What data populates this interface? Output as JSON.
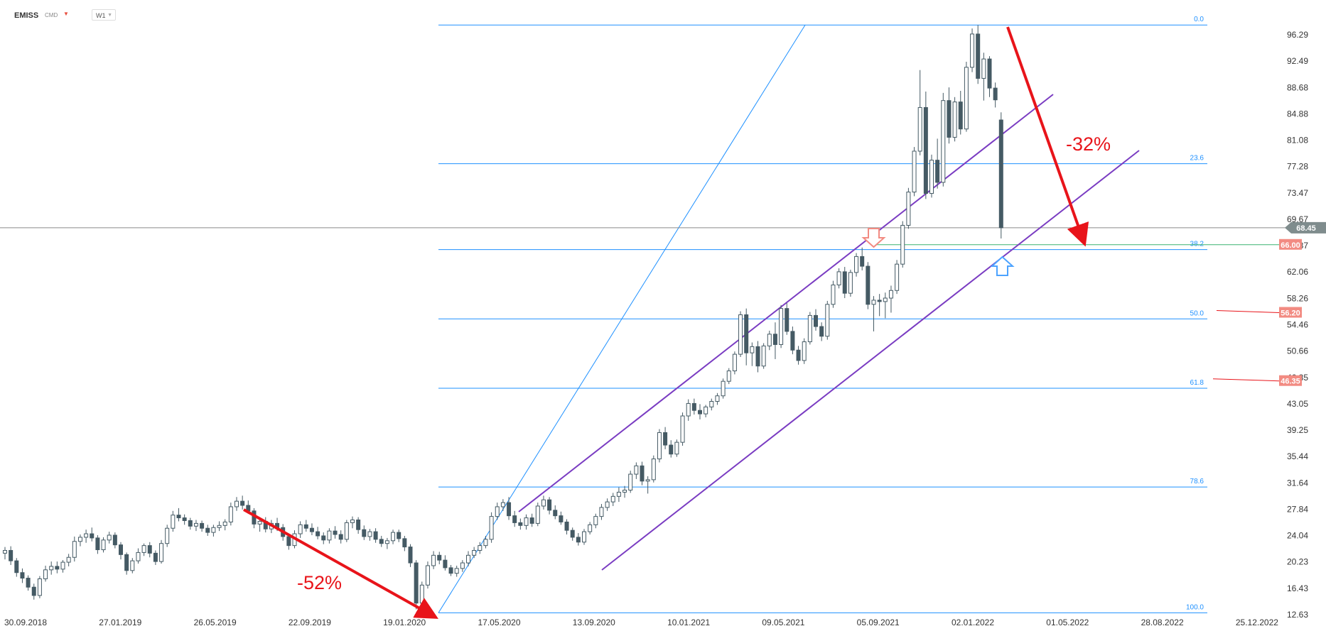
{
  "header": {
    "symbol": "EMISS",
    "type": "CMD",
    "timeframe": "W1"
  },
  "colors": {
    "candle_up_fill": "#ffffff",
    "candle_down_fill": "#455a64",
    "candle_stroke": "#455a64",
    "fib_line": "#1e90ff",
    "channel": "#7a3cc2",
    "arrow": "#e8141a",
    "current_price_bg": "#7f8c8d",
    "level_badge_bg": "#f28b82",
    "marker_down": "#f28b82",
    "marker_up": "#4da3ff"
  },
  "chart_data": {
    "type": "candlestick",
    "title": "",
    "x_ticks": [
      "30.09.2018",
      "27.01.2019",
      "26.05.2019",
      "22.09.2019",
      "19.01.2020",
      "17.05.2020",
      "13.09.2020",
      "10.01.2021",
      "09.05.2021",
      "05.09.2021",
      "02.01.2022",
      "01.05.2022",
      "28.08.2022",
      "25.12.2022"
    ],
    "y_ticks": [
      "96.29",
      "92.49",
      "88.68",
      "84.88",
      "81.08",
      "77.28",
      "73.47",
      "69.67",
      "65.87",
      "62.06",
      "58.26",
      "54.46",
      "50.66",
      "46.85",
      "43.05",
      "39.25",
      "35.44",
      "31.64",
      "27.84",
      "24.04",
      "20.23",
      "16.43",
      "12.63"
    ],
    "ylim": [
      12.63,
      98.5
    ],
    "current_price": {
      "label": "68.45",
      "value": 68.45
    },
    "fibonacci": {
      "high": 97.7,
      "low": 12.9,
      "levels": [
        {
          "label": "0.0",
          "ratio": 0.0
        },
        {
          "label": "23.6",
          "ratio": 0.236
        },
        {
          "label": "38.2",
          "ratio": 0.382
        },
        {
          "label": "50.0",
          "ratio": 0.5
        },
        {
          "label": "61.8",
          "ratio": 0.618
        },
        {
          "label": "78.6",
          "ratio": 0.786
        },
        {
          "label": "100.0",
          "ratio": 1.0
        }
      ]
    },
    "price_levels": [
      {
        "label": "66.00",
        "value": 66.0
      },
      {
        "label": "56.20",
        "value": 56.2
      },
      {
        "label": "46.35",
        "value": 46.35
      }
    ],
    "annotations": [
      {
        "text": "-52%"
      },
      {
        "text": "-32%"
      }
    ],
    "candles": [
      [
        21.5,
        22.4,
        20.6,
        21.9
      ],
      [
        21.9,
        22.5,
        19.8,
        20.4
      ],
      [
        20.4,
        20.8,
        18.1,
        18.7
      ],
      [
        18.7,
        19.3,
        17.2,
        17.9
      ],
      [
        17.9,
        18.3,
        16.1,
        16.6
      ],
      [
        16.6,
        17.1,
        14.8,
        15.4
      ],
      [
        15.4,
        18.2,
        15.0,
        17.8
      ],
      [
        17.8,
        19.7,
        17.4,
        19.1
      ],
      [
        19.1,
        20.3,
        18.4,
        19.6
      ],
      [
        19.6,
        20.3,
        18.6,
        19.2
      ],
      [
        19.2,
        20.5,
        18.7,
        20.2
      ],
      [
        20.2,
        21.4,
        19.6,
        20.9
      ],
      [
        20.9,
        23.9,
        20.3,
        23.2
      ],
      [
        23.2,
        24.2,
        22.5,
        23.8
      ],
      [
        23.8,
        24.9,
        23.0,
        24.3
      ],
      [
        24.3,
        25.2,
        23.2,
        23.7
      ],
      [
        23.7,
        24.1,
        21.4,
        22.0
      ],
      [
        22.0,
        23.8,
        21.6,
        23.4
      ],
      [
        23.4,
        24.6,
        22.9,
        24.1
      ],
      [
        24.1,
        24.5,
        22.2,
        22.7
      ],
      [
        22.7,
        23.1,
        20.6,
        21.3
      ],
      [
        21.3,
        21.6,
        18.4,
        19.0
      ],
      [
        19.0,
        20.8,
        18.6,
        20.4
      ],
      [
        20.4,
        22.2,
        20.0,
        21.6
      ],
      [
        21.6,
        22.9,
        21.1,
        22.6
      ],
      [
        22.6,
        23.1,
        20.9,
        21.5
      ],
      [
        21.5,
        21.9,
        19.8,
        20.3
      ],
      [
        20.3,
        23.4,
        20.0,
        22.9
      ],
      [
        22.9,
        25.6,
        22.4,
        25.1
      ],
      [
        25.1,
        27.6,
        24.6,
        27.0
      ],
      [
        27.0,
        28.0,
        26.1,
        26.6
      ],
      [
        26.6,
        27.1,
        25.6,
        26.2
      ],
      [
        26.2,
        26.6,
        24.9,
        25.4
      ],
      [
        25.4,
        26.3,
        24.7,
        25.8
      ],
      [
        25.8,
        26.2,
        24.6,
        25.1
      ],
      [
        25.1,
        25.6,
        24.0,
        24.5
      ],
      [
        24.5,
        25.6,
        23.9,
        25.2
      ],
      [
        25.2,
        26.1,
        24.7,
        25.5
      ],
      [
        25.5,
        26.4,
        24.8,
        26.0
      ],
      [
        26.0,
        28.8,
        25.5,
        28.2
      ],
      [
        28.2,
        29.6,
        27.6,
        29.0
      ],
      [
        29.0,
        29.8,
        27.8,
        28.4
      ],
      [
        28.4,
        29.1,
        27.2,
        27.6
      ],
      [
        27.6,
        28.0,
        25.1,
        25.7
      ],
      [
        25.7,
        26.7,
        24.6,
        26.1
      ],
      [
        26.1,
        26.7,
        24.5,
        25.0
      ],
      [
        25.0,
        26.3,
        24.4,
        25.8
      ],
      [
        25.8,
        26.6,
        24.7,
        25.2
      ],
      [
        25.2,
        25.7,
        23.3,
        23.9
      ],
      [
        23.9,
        24.3,
        22.0,
        22.6
      ],
      [
        22.6,
        24.8,
        22.2,
        24.3
      ],
      [
        24.3,
        26.1,
        23.7,
        25.6
      ],
      [
        25.6,
        26.3,
        24.6,
        25.1
      ],
      [
        25.1,
        25.8,
        24.1,
        24.6
      ],
      [
        24.6,
        25.3,
        23.5,
        24.0
      ],
      [
        24.0,
        24.5,
        22.8,
        23.4
      ],
      [
        23.4,
        25.1,
        22.9,
        24.7
      ],
      [
        24.7,
        25.4,
        23.6,
        24.2
      ],
      [
        24.2,
        24.8,
        22.9,
        23.5
      ],
      [
        23.5,
        26.3,
        23.1,
        25.9
      ],
      [
        25.9,
        26.8,
        25.1,
        26.3
      ],
      [
        26.3,
        26.7,
        24.3,
        24.9
      ],
      [
        24.9,
        25.5,
        23.4,
        23.9
      ],
      [
        23.9,
        25.0,
        23.3,
        24.6
      ],
      [
        24.6,
        25.1,
        23.0,
        23.5
      ],
      [
        23.5,
        24.0,
        22.4,
        22.9
      ],
      [
        22.9,
        23.7,
        22.1,
        23.3
      ],
      [
        23.3,
        24.9,
        22.8,
        24.5
      ],
      [
        24.5,
        24.9,
        23.1,
        23.6
      ],
      [
        23.6,
        24.0,
        21.8,
        22.4
      ],
      [
        22.4,
        22.8,
        19.5,
        20.1
      ],
      [
        20.1,
        20.5,
        13.4,
        14.3
      ],
      [
        14.3,
        17.4,
        13.1,
        16.9
      ],
      [
        16.9,
        20.3,
        16.4,
        19.7
      ],
      [
        19.7,
        21.8,
        19.2,
        21.2
      ],
      [
        21.2,
        21.7,
        19.9,
        20.5
      ],
      [
        20.5,
        21.2,
        19.0,
        19.4
      ],
      [
        19.4,
        19.8,
        18.2,
        18.6
      ],
      [
        18.6,
        19.7,
        18.1,
        19.3
      ],
      [
        19.3,
        20.5,
        18.8,
        20.1
      ],
      [
        20.1,
        21.8,
        19.6,
        21.2
      ],
      [
        21.2,
        22.4,
        20.8,
        21.9
      ],
      [
        21.9,
        23.1,
        21.4,
        22.6
      ],
      [
        22.6,
        24.0,
        22.2,
        23.5
      ],
      [
        23.5,
        27.4,
        23.0,
        26.8
      ],
      [
        26.8,
        28.8,
        26.3,
        28.2
      ],
      [
        28.2,
        29.3,
        27.6,
        28.8
      ],
      [
        28.8,
        29.6,
        26.3,
        26.9
      ],
      [
        26.9,
        27.6,
        25.3,
        25.9
      ],
      [
        25.9,
        26.5,
        24.9,
        25.5
      ],
      [
        25.5,
        27.1,
        24.9,
        26.6
      ],
      [
        26.6,
        27.2,
        25.3,
        25.8
      ],
      [
        25.8,
        28.8,
        25.4,
        28.3
      ],
      [
        28.3,
        29.8,
        27.8,
        29.2
      ],
      [
        29.2,
        29.6,
        27.1,
        27.7
      ],
      [
        27.7,
        28.4,
        26.4,
        26.9
      ],
      [
        26.9,
        27.5,
        25.6,
        26.0
      ],
      [
        26.0,
        26.4,
        24.2,
        24.8
      ],
      [
        24.8,
        25.2,
        23.3,
        23.8
      ],
      [
        23.8,
        24.4,
        22.6,
        23.1
      ],
      [
        23.1,
        25.0,
        22.7,
        24.6
      ],
      [
        24.6,
        26.0,
        24.2,
        25.6
      ],
      [
        25.6,
        27.2,
        25.1,
        26.8
      ],
      [
        26.8,
        28.6,
        26.3,
        28.1
      ],
      [
        28.1,
        29.4,
        27.6,
        28.9
      ],
      [
        28.9,
        30.2,
        28.3,
        29.7
      ],
      [
        29.7,
        31.0,
        28.9,
        30.3
      ],
      [
        30.3,
        31.2,
        29.5,
        30.6
      ],
      [
        30.6,
        33.4,
        30.2,
        32.9
      ],
      [
        32.9,
        34.6,
        32.2,
        34.1
      ],
      [
        34.1,
        34.7,
        31.3,
        31.9
      ],
      [
        31.9,
        32.6,
        30.1,
        32.1
      ],
      [
        32.1,
        35.6,
        31.7,
        35.1
      ],
      [
        35.1,
        39.4,
        34.6,
        38.9
      ],
      [
        38.9,
        39.7,
        36.5,
        37.1
      ],
      [
        37.1,
        37.8,
        35.3,
        35.8
      ],
      [
        35.8,
        37.9,
        35.4,
        37.5
      ],
      [
        37.5,
        41.8,
        37.0,
        41.3
      ],
      [
        41.3,
        43.7,
        40.6,
        43.1
      ],
      [
        43.1,
        43.8,
        41.5,
        42.1
      ],
      [
        42.1,
        43.0,
        40.8,
        41.6
      ],
      [
        41.6,
        42.9,
        41.1,
        42.6
      ],
      [
        42.6,
        43.8,
        42.1,
        43.4
      ],
      [
        43.4,
        44.6,
        42.9,
        44.2
      ],
      [
        44.2,
        46.7,
        43.8,
        46.3
      ],
      [
        46.3,
        48.2,
        45.9,
        47.8
      ],
      [
        47.8,
        50.6,
        47.3,
        50.2
      ],
      [
        50.2,
        56.4,
        49.8,
        55.9
      ],
      [
        55.9,
        56.8,
        48.6,
        50.4
      ],
      [
        50.4,
        51.9,
        48.5,
        51.3
      ],
      [
        51.3,
        52.1,
        47.6,
        48.5
      ],
      [
        48.5,
        51.8,
        48.1,
        51.4
      ],
      [
        51.4,
        53.6,
        50.8,
        53.1
      ],
      [
        53.1,
        54.8,
        49.5,
        51.6
      ],
      [
        51.6,
        57.3,
        51.1,
        56.8
      ],
      [
        56.8,
        57.6,
        53.0,
        53.5
      ],
      [
        53.5,
        54.2,
        50.2,
        50.8
      ],
      [
        50.8,
        51.4,
        48.7,
        49.3
      ],
      [
        49.3,
        52.5,
        48.8,
        52.0
      ],
      [
        52.0,
        56.3,
        51.6,
        55.8
      ],
      [
        55.8,
        56.7,
        53.6,
        54.2
      ],
      [
        54.2,
        54.8,
        52.1,
        52.8
      ],
      [
        52.8,
        57.9,
        52.3,
        57.4
      ],
      [
        57.4,
        60.8,
        56.9,
        60.2
      ],
      [
        60.2,
        62.6,
        59.7,
        62.1
      ],
      [
        62.1,
        62.8,
        58.3,
        59.0
      ],
      [
        59.0,
        62.4,
        58.5,
        62.0
      ],
      [
        62.0,
        64.8,
        61.4,
        64.3
      ],
      [
        64.3,
        65.6,
        62.3,
        62.9
      ],
      [
        62.9,
        63.5,
        56.7,
        57.4
      ],
      [
        57.4,
        58.6,
        53.5,
        58.0
      ],
      [
        58.0,
        58.9,
        55.7,
        57.8
      ],
      [
        57.8,
        59.1,
        55.4,
        58.3
      ],
      [
        58.3,
        60.1,
        56.2,
        59.4
      ],
      [
        59.4,
        63.8,
        58.9,
        63.2
      ],
      [
        63.2,
        69.4,
        62.7,
        68.8
      ],
      [
        68.8,
        74.2,
        68.3,
        73.6
      ],
      [
        73.6,
        80.1,
        73.0,
        79.5
      ],
      [
        79.5,
        91.2,
        78.9,
        85.8
      ],
      [
        85.8,
        88.1,
        72.6,
        73.4
      ],
      [
        73.4,
        79.0,
        72.8,
        78.2
      ],
      [
        78.2,
        81.3,
        74.1,
        75.0
      ],
      [
        75.0,
        87.9,
        74.4,
        86.8
      ],
      [
        86.8,
        88.7,
        80.6,
        81.5
      ],
      [
        81.5,
        87.3,
        80.9,
        86.6
      ],
      [
        86.6,
        88.2,
        81.9,
        82.7
      ],
      [
        82.7,
        92.4,
        82.3,
        91.6
      ],
      [
        91.6,
        97.2,
        90.9,
        96.4
      ],
      [
        96.4,
        97.7,
        89.2,
        90.0
      ],
      [
        90.0,
        93.7,
        86.8,
        92.8
      ],
      [
        92.8,
        93.2,
        87.3,
        88.6
      ],
      [
        88.6,
        89.4,
        85.8,
        86.9
      ],
      [
        84.0,
        85.1,
        66.9,
        68.45
      ]
    ]
  }
}
